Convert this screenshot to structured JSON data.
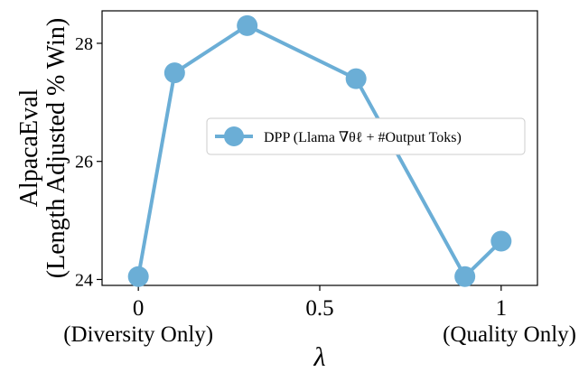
{
  "chart_data": {
    "type": "line",
    "x": [
      0,
      0.1,
      0.3,
      0.6,
      0.9,
      1.0
    ],
    "series": [
      {
        "name": "DPP (Llama ∇θℓ + #Output Toks)",
        "values": [
          24.05,
          27.5,
          28.3,
          27.4,
          24.05,
          24.65
        ],
        "color": "#6baed6"
      }
    ],
    "xlim": [
      -0.1,
      1.1
    ],
    "ylim": [
      23.9,
      28.55
    ],
    "x_ticks": [
      {
        "value": 0,
        "label": "0",
        "sublabel": "(Diversity Only)"
      },
      {
        "value": 0.5,
        "label": "0.5",
        "sublabel": ""
      },
      {
        "value": 1,
        "label": "1",
        "sublabel": "(Quality Only)"
      }
    ],
    "y_ticks": [
      {
        "value": 24,
        "label": "24"
      },
      {
        "value": 26,
        "label": "26"
      },
      {
        "value": 28,
        "label": "28"
      }
    ],
    "xlabel": "λ",
    "ylabel_line1": "AlpacaEval",
    "ylabel_line2": "(Length Adjusted % Win)",
    "legend_position": "center-right",
    "grid": false
  }
}
